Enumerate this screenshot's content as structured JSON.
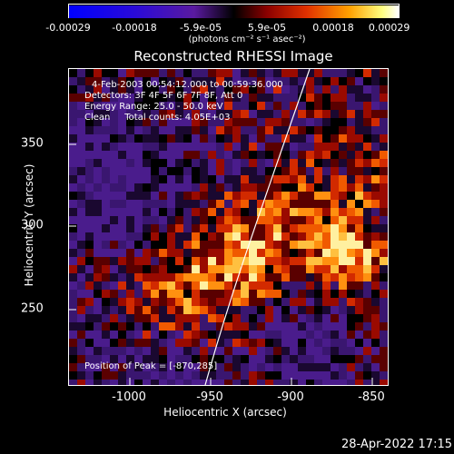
{
  "colorbar": {
    "tick_labels": [
      "-0.00029",
      "-0.00018",
      "-5.9e-05",
      "5.9e-05",
      "0.00018",
      "0.00029"
    ],
    "unit_label": "(photons cm⁻² s⁻¹ asec⁻²)"
  },
  "plot": {
    "title": "Reconstructed RHESSI Image",
    "info": {
      "time_range": "4-Feb-2003 00:54:12.000 to 00:59:36.000",
      "detectors": "Detectors: 3F 4F 5F 6F 7F 8F, Att 0",
      "energy_range": "Energy Range: 25.0 - 50.0 keV",
      "algorithm": "Clean     Total counts: 4.05E+03"
    },
    "peak_label": "Position of Peak = [-870,285]",
    "xlabel": "Heliocentric X (arcsec)",
    "ylabel": "Heliocentric Y (arcsec)",
    "x_ticks": [
      "-1000",
      "-950",
      "-900",
      "-850"
    ],
    "y_ticks": [
      "350",
      "300",
      "250"
    ]
  },
  "footer": {
    "timestamp": "28-Apr-2022 17:15"
  }
}
